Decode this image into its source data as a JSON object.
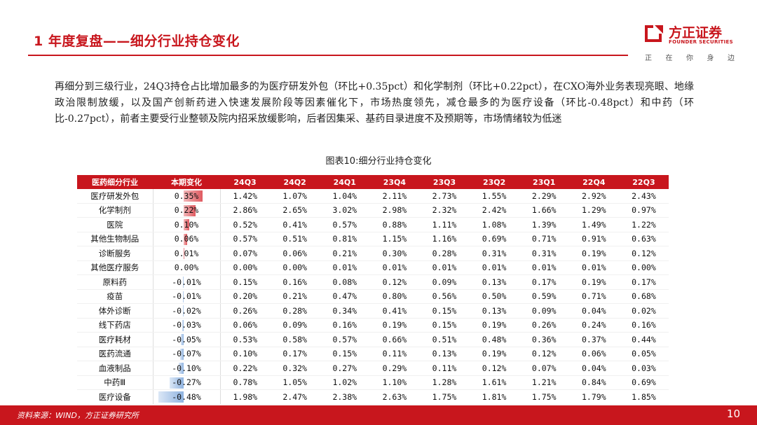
{
  "header": {
    "title": "1 年度复盘——细分行业持仓变化"
  },
  "logo": {
    "name_cn": "方正证券",
    "name_en": "FOUNDER SECURITIES",
    "slogan": [
      "正",
      "在",
      "你",
      "身",
      "边"
    ]
  },
  "paragraph": "再细分到三级行业，24Q3持仓占比增加最多的为医疗研发外包（环比+0.35pct）和化学制剂（环比+0.22pct），在CXO海外业务表现亮眼、地缘政治限制放缓，以及国产创新药进入快速发展阶段等因素催化下，市场热度领先，减仓最多的为医疗设备（环比-0.48pct）和中药（环比-0.27pct），前者主要受行业整顿及院内招采放缓影响，后者因集采、基药目录进度不及预期等，市场情绪较为低迷",
  "caption": "图表10:细分行业持仓变化",
  "table": {
    "headers": [
      "医药细分行业",
      "本期变化",
      "24Q3",
      "24Q2",
      "24Q1",
      "23Q4",
      "23Q3",
      "23Q2",
      "23Q1",
      "22Q4",
      "22Q3"
    ],
    "rows": [
      {
        "name": "医疗研发外包",
        "change": "0.35%",
        "change_value": 0.35,
        "values": [
          "1.42%",
          "1.07%",
          "1.04%",
          "2.11%",
          "2.73%",
          "1.55%",
          "2.29%",
          "2.92%",
          "2.43%"
        ]
      },
      {
        "name": "化学制剂",
        "change": "0.22%",
        "change_value": 0.22,
        "values": [
          "2.86%",
          "2.65%",
          "3.02%",
          "2.98%",
          "2.32%",
          "2.42%",
          "1.66%",
          "1.29%",
          "0.97%"
        ]
      },
      {
        "name": "医院",
        "change": "0.10%",
        "change_value": 0.1,
        "values": [
          "0.52%",
          "0.41%",
          "0.57%",
          "0.88%",
          "1.11%",
          "1.08%",
          "1.39%",
          "1.49%",
          "1.22%"
        ]
      },
      {
        "name": "其他生物制品",
        "change": "0.06%",
        "change_value": 0.06,
        "values": [
          "0.57%",
          "0.51%",
          "0.81%",
          "1.15%",
          "1.16%",
          "0.69%",
          "0.71%",
          "0.91%",
          "0.63%"
        ]
      },
      {
        "name": "诊断服务",
        "change": "0.01%",
        "change_value": 0.01,
        "values": [
          "0.07%",
          "0.06%",
          "0.21%",
          "0.30%",
          "0.28%",
          "0.31%",
          "0.31%",
          "0.19%",
          "0.12%"
        ]
      },
      {
        "name": "其他医疗服务",
        "change": "0.00%",
        "change_value": 0.0,
        "values": [
          "0.00%",
          "0.00%",
          "0.01%",
          "0.01%",
          "0.01%",
          "0.01%",
          "0.01%",
          "0.01%",
          "0.00%"
        ]
      },
      {
        "name": "原料药",
        "change": "-0.01%",
        "change_value": -0.01,
        "values": [
          "0.15%",
          "0.16%",
          "0.08%",
          "0.12%",
          "0.09%",
          "0.13%",
          "0.17%",
          "0.19%",
          "0.17%"
        ]
      },
      {
        "name": "疫苗",
        "change": "-0.01%",
        "change_value": -0.01,
        "values": [
          "0.20%",
          "0.21%",
          "0.47%",
          "0.80%",
          "0.56%",
          "0.50%",
          "0.59%",
          "0.71%",
          "0.68%"
        ]
      },
      {
        "name": "体外诊断",
        "change": "-0.02%",
        "change_value": -0.02,
        "values": [
          "0.26%",
          "0.28%",
          "0.34%",
          "0.41%",
          "0.15%",
          "0.13%",
          "0.09%",
          "0.04%",
          "0.02%"
        ]
      },
      {
        "name": "线下药店",
        "change": "-0.03%",
        "change_value": -0.03,
        "values": [
          "0.06%",
          "0.09%",
          "0.16%",
          "0.19%",
          "0.15%",
          "0.19%",
          "0.26%",
          "0.24%",
          "0.16%"
        ]
      },
      {
        "name": "医疗耗材",
        "change": "-0.05%",
        "change_value": -0.05,
        "values": [
          "0.53%",
          "0.58%",
          "0.57%",
          "0.66%",
          "0.51%",
          "0.48%",
          "0.36%",
          "0.37%",
          "0.44%"
        ]
      },
      {
        "name": "医药流通",
        "change": "-0.07%",
        "change_value": -0.07,
        "values": [
          "0.10%",
          "0.17%",
          "0.15%",
          "0.11%",
          "0.13%",
          "0.19%",
          "0.12%",
          "0.06%",
          "0.05%"
        ]
      },
      {
        "name": "血液制品",
        "change": "-0.10%",
        "change_value": -0.1,
        "values": [
          "0.22%",
          "0.32%",
          "0.27%",
          "0.29%",
          "0.11%",
          "0.12%",
          "0.07%",
          "0.04%",
          "0.03%"
        ]
      },
      {
        "name": "中药Ⅲ",
        "change": "-0.27%",
        "change_value": -0.27,
        "values": [
          "0.78%",
          "1.05%",
          "1.02%",
          "1.10%",
          "1.28%",
          "1.61%",
          "1.21%",
          "0.84%",
          "0.69%"
        ]
      },
      {
        "name": "医疗设备",
        "change": "-0.48%",
        "change_value": -0.48,
        "values": [
          "1.98%",
          "2.47%",
          "2.38%",
          "2.63%",
          "1.75%",
          "1.81%",
          "1.75%",
          "1.79%",
          "1.85%"
        ]
      }
    ]
  },
  "footer": {
    "source": "资料来源：WIND，方正证券研究所",
    "page": "10"
  },
  "colors": {
    "brand_red": "#c8161d",
    "positive_bar": "#e05a60",
    "negative_bar": "#8fb3e0"
  }
}
